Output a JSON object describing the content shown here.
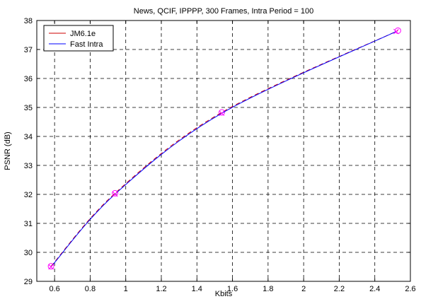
{
  "chart_data": {
    "type": "line",
    "title": "News, QCIF, IPPPP, 300 Frames, Intra Period = 100",
    "xlabel": "Kbits",
    "ylabel": "PSNR (dB)",
    "xlim": [
      0.5,
      2.6
    ],
    "ylim": [
      29,
      38
    ],
    "xticks": [
      0.6,
      0.8,
      1,
      1.2,
      1.4,
      1.6,
      1.8,
      2,
      2.2,
      2.4,
      2.6
    ],
    "xtick_labels": [
      "0.6",
      "0.8",
      "1",
      "1.2",
      "1.4",
      "1.6",
      "1.8",
      "2",
      "2.2",
      "2.4",
      "2.6"
    ],
    "yticks": [
      29,
      30,
      31,
      32,
      33,
      34,
      35,
      36,
      37,
      38
    ],
    "ytick_labels": [
      "29",
      "30",
      "31",
      "32",
      "33",
      "34",
      "35",
      "36",
      "37",
      "38"
    ],
    "grid": true,
    "legend_position": "top-left",
    "series": [
      {
        "name": "JM6.1e",
        "color": "#cc0000",
        "line_style": "dash",
        "marker": "circle",
        "marker_color": "#ff00ff",
        "x": [
          0.58,
          0.94,
          1.54,
          2.53
        ],
        "y": [
          29.52,
          32.04,
          34.83,
          37.65
        ]
      },
      {
        "name": "Fast Intra",
        "color": "#0000ff",
        "line_style": "solid",
        "marker": "x",
        "marker_color": "#ff00ff",
        "x": [
          0.58,
          0.94,
          1.54,
          2.52
        ],
        "y": [
          29.5,
          32.01,
          34.8,
          37.62
        ]
      }
    ]
  }
}
